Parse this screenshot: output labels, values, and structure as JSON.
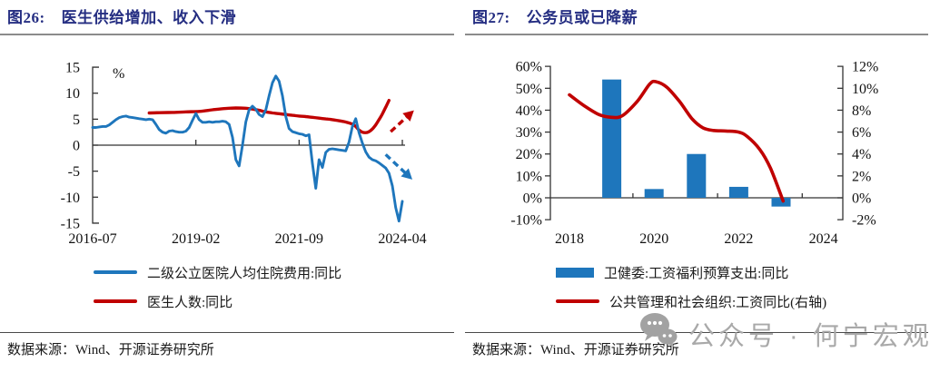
{
  "panels": [
    {
      "title_prefix": "图26:",
      "title": "医生供给增加、收入下滑",
      "source": "数据来源：Wind、开源证券研究所",
      "legend": [
        {
          "type": "line",
          "color": "#1E76BC",
          "label": "二级公立医院人均住院费用:同比"
        },
        {
          "type": "line",
          "color": "#C00000",
          "label": "医生人数:同比"
        }
      ]
    },
    {
      "title_prefix": "图27:",
      "title": "公务员或已降薪",
      "source": "数据来源：Wind、开源证券研究所",
      "legend": [
        {
          "type": "bar",
          "color": "#1E76BC",
          "label": "卫健委:工资福利预算支出:同比"
        },
        {
          "type": "line",
          "color": "#C00000",
          "label": "公共管理和社会组织:工资同比(右轴)"
        }
      ]
    }
  ],
  "watermark": {
    "icon": "wechat-icon",
    "text": "公众号 · 何宁宏观"
  },
  "colors": {
    "title_navy": "#252E82",
    "series_blue": "#1E76BC",
    "series_red": "#C00000",
    "axis": "#333333",
    "watermark_gray": "#a9a9a9"
  },
  "chart_data": [
    {
      "type": "line",
      "title": "图26: 医生供给增加、收入下滑",
      "y_axis": {
        "min": -15,
        "max": 15,
        "unit": "%",
        "tick_values": [
          15,
          10,
          5,
          0,
          -5,
          -10,
          -15
        ],
        "tick_labels": [
          "15",
          "10",
          "5",
          "0",
          "-5",
          "-10",
          "-15"
        ]
      },
      "x_axis": {
        "tick_months": [
          0,
          31,
          62,
          93
        ],
        "tick_labels": [
          "2016-07",
          "2019-02",
          "2021-09",
          "2024-04"
        ]
      },
      "series": [
        {
          "name": "二级公立医院人均住院费用:同比",
          "color": "#1E76BC",
          "style": "solid",
          "points": [
            [
              0,
              3.4
            ],
            [
              1,
              3.4
            ],
            [
              2,
              3.5
            ],
            [
              3,
              3.6
            ],
            [
              4,
              3.6
            ],
            [
              5,
              3.9
            ],
            [
              6,
              4.4
            ],
            [
              7,
              4.9
            ],
            [
              8,
              5.3
            ],
            [
              9,
              5.5
            ],
            [
              10,
              5.6
            ],
            [
              11,
              5.4
            ],
            [
              12,
              5.3
            ],
            [
              13,
              5.2
            ],
            [
              14,
              5.1
            ],
            [
              15,
              5.0
            ],
            [
              16,
              4.9
            ],
            [
              17,
              5.0
            ],
            [
              18,
              4.9
            ],
            [
              19,
              4.0
            ],
            [
              20,
              3.0
            ],
            [
              21,
              2.5
            ],
            [
              22,
              2.3
            ],
            [
              23,
              2.7
            ],
            [
              24,
              2.8
            ],
            [
              25,
              2.6
            ],
            [
              26,
              2.5
            ],
            [
              27,
              2.5
            ],
            [
              28,
              2.7
            ],
            [
              29,
              3.4
            ],
            [
              30,
              4.8
            ],
            [
              31,
              6.1
            ],
            [
              32,
              4.9
            ],
            [
              33,
              4.4
            ],
            [
              34,
              4.4
            ],
            [
              35,
              4.5
            ],
            [
              36,
              4.4
            ],
            [
              37,
              4.5
            ],
            [
              38,
              4.5
            ],
            [
              39,
              4.6
            ],
            [
              40,
              4.5
            ],
            [
              41,
              4.0
            ],
            [
              42,
              1.5
            ],
            [
              43,
              -2.8
            ],
            [
              44,
              -4.0
            ],
            [
              45,
              0.0
            ],
            [
              46,
              4.5
            ],
            [
              47,
              6.8
            ],
            [
              48,
              7.5
            ],
            [
              49,
              6.9
            ],
            [
              50,
              5.9
            ],
            [
              51,
              5.5
            ],
            [
              52,
              6.8
            ],
            [
              53,
              9.5
            ],
            [
              54,
              12.0
            ],
            [
              55,
              13.3
            ],
            [
              56,
              12.3
            ],
            [
              57,
              9.5
            ],
            [
              58,
              5.5
            ],
            [
              59,
              3.2
            ],
            [
              60,
              2.6
            ],
            [
              61,
              2.4
            ],
            [
              62,
              2.2
            ],
            [
              63,
              2.1
            ],
            [
              64,
              1.8
            ],
            [
              65,
              2.0
            ],
            [
              66,
              -3.5
            ],
            [
              67,
              -8.3
            ],
            [
              68,
              -2.8
            ],
            [
              69,
              -4.3
            ],
            [
              70,
              -1.4
            ],
            [
              71,
              -0.8
            ],
            [
              72,
              -0.7
            ],
            [
              73,
              -0.8
            ],
            [
              74,
              -0.9
            ],
            [
              75,
              -1.0
            ],
            [
              76,
              -1.1
            ],
            [
              77,
              0.6
            ],
            [
              78,
              3.6
            ],
            [
              79,
              5.1
            ],
            [
              80,
              2.4
            ],
            [
              81,
              0.4
            ],
            [
              82,
              -1.3
            ],
            [
              83,
              -2.3
            ],
            [
              84,
              -2.8
            ],
            [
              85,
              -3.0
            ],
            [
              86,
              -3.4
            ],
            [
              87,
              -3.9
            ],
            [
              88,
              -4.4
            ],
            [
              89,
              -5.4
            ],
            [
              90,
              -7.8
            ],
            [
              91,
              -12.0
            ],
            [
              92,
              -14.6
            ],
            [
              93,
              -10.8
            ]
          ]
        },
        {
          "name": "医生人数:同比",
          "color": "#C00000",
          "style": "solid",
          "points": [
            [
              17,
              6.2
            ],
            [
              20,
              6.25
            ],
            [
              24,
              6.3
            ],
            [
              28,
              6.4
            ],
            [
              32,
              6.5
            ],
            [
              36,
              6.8
            ],
            [
              40,
              7.05
            ],
            [
              43,
              7.15
            ],
            [
              46,
              7.1
            ],
            [
              48,
              6.95
            ],
            [
              50,
              6.7
            ],
            [
              52,
              6.4
            ],
            [
              54,
              6.2
            ],
            [
              56,
              6.05
            ],
            [
              58,
              5.9
            ],
            [
              60,
              5.75
            ],
            [
              62,
              5.6
            ],
            [
              64,
              5.5
            ],
            [
              66,
              5.35
            ],
            [
              68,
              5.2
            ],
            [
              70,
              5.05
            ],
            [
              72,
              4.9
            ],
            [
              74,
              4.7
            ],
            [
              76,
              4.45
            ],
            [
              78,
              4.05
            ],
            [
              79,
              3.6
            ],
            [
              80,
              2.9
            ],
            [
              81,
              2.5
            ],
            [
              82,
              2.4
            ],
            [
              83,
              2.6
            ],
            [
              84,
              3.1
            ],
            [
              85,
              3.9
            ],
            [
              86,
              4.9
            ],
            [
              87,
              6.0
            ],
            [
              88,
              7.3
            ],
            [
              89,
              8.6
            ]
          ]
        }
      ],
      "annotations": [
        {
          "type": "arrow",
          "name": "red-up-trend-arrow",
          "color": "#C00000",
          "dashed": true,
          "from": [
            89.5,
            2.6
          ],
          "to": [
            96.5,
            6.7
          ]
        },
        {
          "type": "arrow",
          "name": "blue-down-trend-arrow",
          "color": "#1E76BC",
          "dashed": true,
          "from": [
            88.0,
            -1.8
          ],
          "to": [
            96.0,
            -6.6
          ]
        }
      ]
    },
    {
      "type": "bar-line-combo",
      "title": "图27: 公务员或已降薪",
      "left_axis": {
        "min": -10,
        "max": 60,
        "tick_values": [
          60,
          50,
          40,
          30,
          20,
          10,
          0,
          -10
        ],
        "tick_labels": [
          "60%",
          "50%",
          "40%",
          "30%",
          "20%",
          "10%",
          "0%",
          "-10%"
        ]
      },
      "right_axis": {
        "min": -2,
        "max": 12,
        "tick_values": [
          12,
          10,
          8,
          6,
          4,
          2,
          0,
          -2
        ],
        "tick_labels": [
          "12%",
          "10%",
          "8%",
          "6%",
          "4%",
          "2%",
          "0%",
          "-2%"
        ]
      },
      "x_axis": {
        "label_years": [
          2018,
          2020,
          2022,
          2024
        ],
        "tick_labels": [
          "2018",
          "2020",
          "2022",
          "2024"
        ],
        "boundary_tick_years": [
          2019.5,
          2021.5,
          2023.5
        ]
      },
      "bars": {
        "name": "卫健委:工资福利预算支出:同比",
        "color": "#1E76BC",
        "axis": "left",
        "data": [
          {
            "year": 2019,
            "value": 54
          },
          {
            "year": 2020,
            "value": 4
          },
          {
            "year": 2021,
            "value": 20
          },
          {
            "year": 2022,
            "value": 5
          },
          {
            "year": 2023,
            "value": -4
          }
        ]
      },
      "line": {
        "name": "公共管理和社会组织:工资同比(右轴)",
        "color": "#C00000",
        "axis": "right",
        "points": [
          [
            2018.0,
            9.4
          ],
          [
            2018.35,
            8.4
          ],
          [
            2018.7,
            7.6
          ],
          [
            2019.0,
            7.35
          ],
          [
            2019.25,
            7.5
          ],
          [
            2019.6,
            8.8
          ],
          [
            2019.9,
            10.4
          ],
          [
            2020.05,
            10.6
          ],
          [
            2020.3,
            10.1
          ],
          [
            2020.6,
            8.8
          ],
          [
            2020.9,
            7.2
          ],
          [
            2021.15,
            6.4
          ],
          [
            2021.4,
            6.15
          ],
          [
            2021.7,
            6.1
          ],
          [
            2022.0,
            6.0
          ],
          [
            2022.2,
            5.6
          ],
          [
            2022.5,
            4.4
          ],
          [
            2022.75,
            2.7
          ],
          [
            2023.05,
            -0.3
          ]
        ]
      }
    }
  ]
}
